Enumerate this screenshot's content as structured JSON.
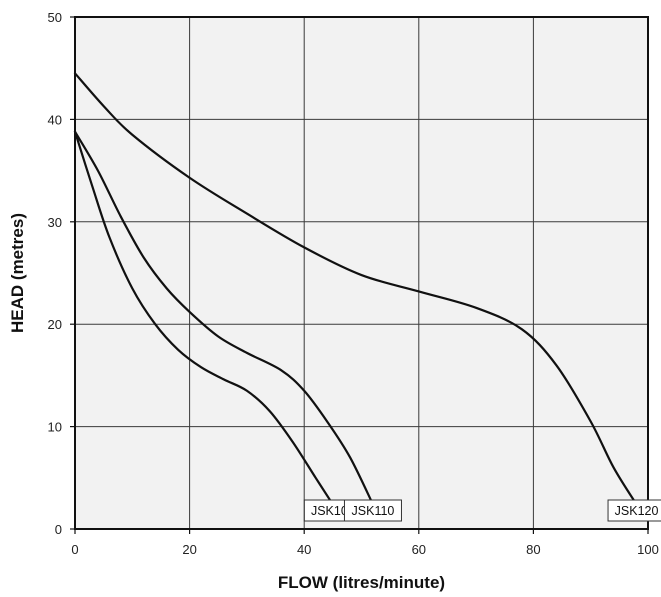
{
  "chart_data": {
    "type": "line",
    "title": "",
    "xlabel": "FLOW (litres/minute)",
    "ylabel": "HEAD (metres)",
    "xlim": [
      0,
      100
    ],
    "ylim": [
      0,
      50
    ],
    "xticks": [
      0,
      20,
      40,
      60,
      80,
      100
    ],
    "yticks": [
      0,
      10,
      20,
      30,
      40,
      50
    ],
    "grid": true,
    "plot_background": "#f2f2f2",
    "line_color": "#111111",
    "series": [
      {
        "name": "JSK100",
        "points": [
          [
            0,
            38.8
          ],
          [
            3,
            33.5
          ],
          [
            6,
            28.5
          ],
          [
            10,
            23.5
          ],
          [
            14,
            20
          ],
          [
            18,
            17.5
          ],
          [
            22,
            15.8
          ],
          [
            26,
            14.6
          ],
          [
            30,
            13.5
          ],
          [
            34,
            11.5
          ],
          [
            38,
            8.5
          ],
          [
            42,
            5
          ],
          [
            45,
            2.4
          ]
        ]
      },
      {
        "name": "JSK110",
        "points": [
          [
            0,
            38.8
          ],
          [
            4,
            35
          ],
          [
            8,
            30.5
          ],
          [
            12,
            26.5
          ],
          [
            16,
            23.5
          ],
          [
            20,
            21.2
          ],
          [
            25,
            18.8
          ],
          [
            30,
            17.2
          ],
          [
            36,
            15.5
          ],
          [
            40,
            13.5
          ],
          [
            44,
            10.5
          ],
          [
            48,
            7
          ],
          [
            52,
            2.4
          ]
        ]
      },
      {
        "name": "JSK120",
        "points": [
          [
            0,
            44.5
          ],
          [
            5,
            41.3
          ],
          [
            10,
            38.5
          ],
          [
            20,
            34.3
          ],
          [
            30,
            30.8
          ],
          [
            40,
            27.5
          ],
          [
            50,
            24.8
          ],
          [
            60,
            23.2
          ],
          [
            70,
            21.6
          ],
          [
            78,
            19.5
          ],
          [
            84,
            16
          ],
          [
            90,
            10.5
          ],
          [
            94,
            6
          ],
          [
            98,
            2.4
          ]
        ]
      }
    ]
  }
}
